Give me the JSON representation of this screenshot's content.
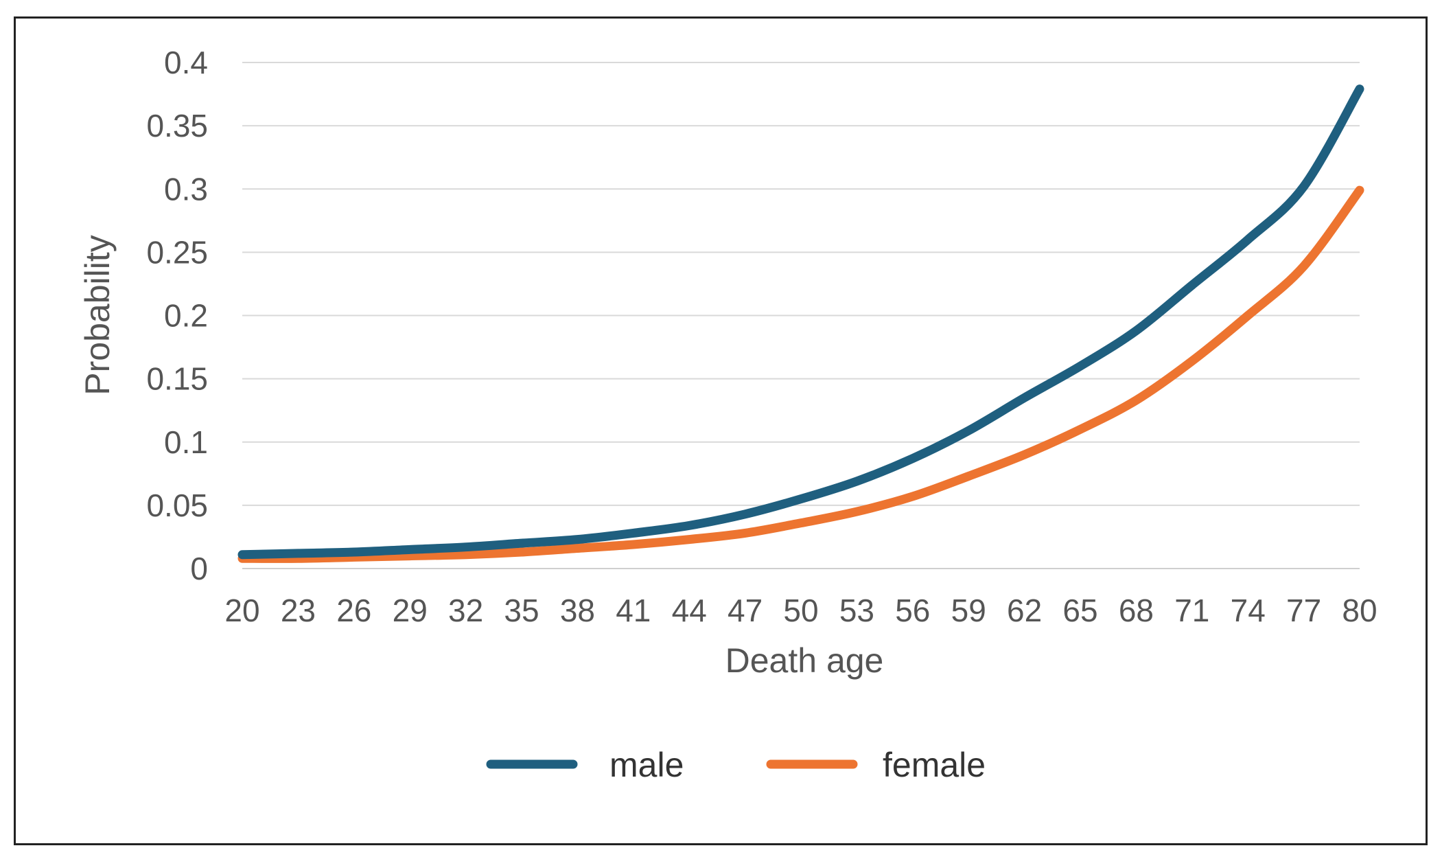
{
  "chart_data": {
    "type": "line",
    "xlabel": "Death age",
    "ylabel": "Probability",
    "ylim": [
      0,
      0.4
    ],
    "y_ticks": [
      "0",
      "0.05",
      "0.1",
      "0.15",
      "0.2",
      "0.25",
      "0.3",
      "0.35",
      "0.4"
    ],
    "x_ticks": [
      "20",
      "23",
      "26",
      "29",
      "32",
      "35",
      "38",
      "41",
      "44",
      "47",
      "50",
      "53",
      "56",
      "59",
      "62",
      "65",
      "68",
      "71",
      "74",
      "77",
      "80"
    ],
    "x": [
      20,
      23,
      26,
      29,
      32,
      35,
      38,
      41,
      44,
      47,
      50,
      53,
      56,
      59,
      62,
      65,
      68,
      71,
      74,
      77,
      80
    ],
    "grid": true,
    "legend_position": "bottom",
    "series": [
      {
        "name": "male",
        "color": "#1f5f7f",
        "values": [
          0.011,
          0.012,
          0.013,
          0.015,
          0.017,
          0.02,
          0.023,
          0.028,
          0.034,
          0.043,
          0.055,
          0.069,
          0.087,
          0.109,
          0.135,
          0.16,
          0.188,
          0.224,
          0.26,
          0.302,
          0.379
        ]
      },
      {
        "name": "female",
        "color": "#ed7430",
        "values": [
          0.008,
          0.008,
          0.009,
          0.01,
          0.011,
          0.013,
          0.016,
          0.019,
          0.023,
          0.028,
          0.036,
          0.045,
          0.057,
          0.073,
          0.09,
          0.11,
          0.133,
          0.164,
          0.2,
          0.239,
          0.299
        ]
      }
    ]
  }
}
